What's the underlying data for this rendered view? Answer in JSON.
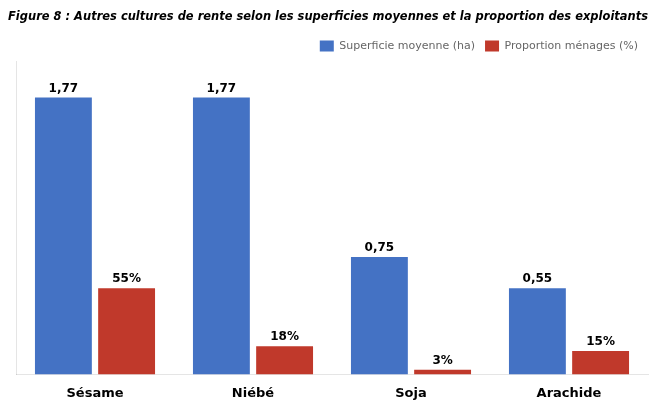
{
  "chart_data": {
    "type": "bar",
    "title": "Figure 8 : Autres cultures de rente selon les superficies moyennes et la proportion des exploitants",
    "categories": [
      "Sésame",
      "Niébé",
      "Soja",
      "Arachide"
    ],
    "series": [
      {
        "name": "Superficie moyenne (ha)",
        "color": "#4472C4",
        "values": [
          1.77,
          1.77,
          0.75,
          0.55
        ],
        "value_labels": [
          "1,77",
          "1,77",
          "0,75",
          "0,55"
        ]
      },
      {
        "name": "Proportion ménages (%)",
        "color": "#C0392B",
        "values": [
          0.55,
          0.18,
          0.03,
          0.15
        ],
        "value_labels": [
          "55%",
          "18%",
          "3%",
          "15%"
        ]
      }
    ],
    "ylim": [
      0,
      2
    ],
    "grid": false,
    "legend": "upper right",
    "data_labels": true,
    "tick_labels": "x"
  }
}
